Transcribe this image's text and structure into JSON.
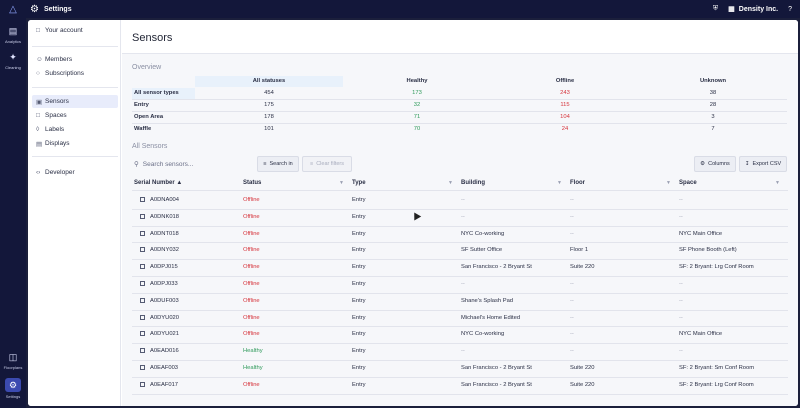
{
  "app": {
    "title": "Settings",
    "org_name": "Density Inc.",
    "help": "?"
  },
  "rail": [
    {
      "label": "Analytics",
      "icon": "analytics-icon"
    },
    {
      "label": "Cleaning",
      "icon": "cleaning-icon"
    },
    {
      "label": "Floorplans",
      "icon": "floorplans-icon"
    },
    {
      "label": "Settings",
      "icon": "settings-icon"
    }
  ],
  "subnav": {
    "account": "Your account",
    "members": "Members",
    "subscriptions": "Subscriptions",
    "sensors": "Sensors",
    "spaces": "Spaces",
    "labels": "Labels",
    "displays": "Displays",
    "developer": "Developer"
  },
  "page": {
    "title": "Sensors"
  },
  "overview": {
    "section_title": "Overview",
    "columns": [
      "All statuses",
      "Healthy",
      "Offline",
      "Unknown"
    ],
    "rows": [
      {
        "label": "All sensor types",
        "values": [
          "454",
          "173",
          "243",
          "38"
        ]
      },
      {
        "label": "Entry",
        "values": [
          "175",
          "32",
          "115",
          "28"
        ]
      },
      {
        "label": "Open Area",
        "values": [
          "178",
          "71",
          "104",
          "3"
        ]
      },
      {
        "label": "Waffle",
        "values": [
          "101",
          "70",
          "24",
          "7"
        ]
      }
    ]
  },
  "sensors": {
    "section_title": "All Sensors",
    "search_placeholder": "Search sensors...",
    "search_button": "Search in",
    "clear_filters": "Clear filters",
    "columns_button": "Columns",
    "export_button": "Export CSV",
    "headers": [
      "Serial Number",
      "Status",
      "Type",
      "Building",
      "Floor",
      "Space"
    ],
    "rows": [
      [
        "A0DNA004",
        "Offline",
        "Entry",
        "--",
        "--",
        "--"
      ],
      [
        "A0DNK018",
        "Offline",
        "Entry",
        "--",
        "--",
        "--"
      ],
      [
        "A0DNT018",
        "Offline",
        "Entry",
        "NYC Co-working",
        "--",
        "NYC Main Office"
      ],
      [
        "A0DNY032",
        "Offline",
        "Entry",
        "SF Sutter Office",
        "Floor 1",
        "SF Phone Booth (Left)"
      ],
      [
        "A0DPJ015",
        "Offline",
        "Entry",
        "San Francisco - 2 Bryant St",
        "Suite 220",
        "SF: 2 Bryant: Lrg Conf Room"
      ],
      [
        "A0DPJ033",
        "Offline",
        "Entry",
        "--",
        "--",
        "--"
      ],
      [
        "A0DUF003",
        "Offline",
        "Entry",
        "Shane's Splash Pad",
        "--",
        "--"
      ],
      [
        "A0DYU020",
        "Offline",
        "Entry",
        "Michael's Home Edited",
        "--",
        "--"
      ],
      [
        "A0DYU021",
        "Offline",
        "Entry",
        "NYC Co-working",
        "--",
        "NYC Main Office"
      ],
      [
        "A0EAD016",
        "Healthy",
        "Entry",
        "--",
        "--",
        "--"
      ],
      [
        "A0EAF003",
        "Healthy",
        "Entry",
        "San Francisco - 2 Bryant St",
        "Suite 220",
        "SF: 2 Bryant: Sm Conf Room"
      ],
      [
        "A0EAF017",
        "Offline",
        "Entry",
        "San Francisco - 2 Bryant St",
        "Suite 220",
        "SF: 2 Bryant: Lrg Conf Room"
      ]
    ]
  },
  "colors": {
    "healthy": "#2e9a5a",
    "offline": "#d6333a",
    "accent": "#3b4ab0"
  }
}
